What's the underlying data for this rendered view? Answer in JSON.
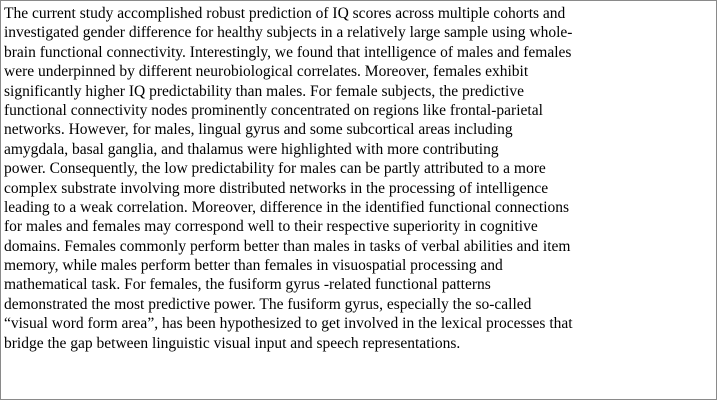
{
  "document": {
    "lines": [
      "The current study accomplished robust prediction of IQ scores across multiple cohorts and",
      "investigated gender difference  for healthy subjects in a relatively large sample using whole-",
      "brain functional connectivity. Interestingly, we found that intelligence  of males and females",
      "were underpinned by different neurobiological correlates. Moreover, females exhibit",
      "significantly higher IQ predictability than males. For female subjects, the predictive",
      "functional connectivity nodes prominently concentrated on regions like frontal-parietal",
      "networks. However, for males, lingual gyrus and some subcortical areas including",
      "amygdala, basal ganglia, and thalamus were highlighted with more contributing",
      "power. Consequently, the low predictability for males can be partly attributed to a more",
      "complex substrate involving more distributed networks in the processing of intelligence",
      "leading to a weak correlation. Moreover, difference in the identified functional connections",
      "for males and females may correspond well to their respective superiority in cognitive",
      "domains. Females commonly perform better than males in tasks of verbal abilities and item",
      "memory, while males perform better than females  in visuospatial processing and",
      "mathematical task. For females, the fusiform gyrus -related functional patterns",
      "demonstrated the most predictive power. The fusiform gyrus, especially the so-called",
      "“visual word form area”, has been hypothesized to get involved in the lexical processes that",
      "bridge the gap between linguistic visual input and speech representations."
    ]
  }
}
